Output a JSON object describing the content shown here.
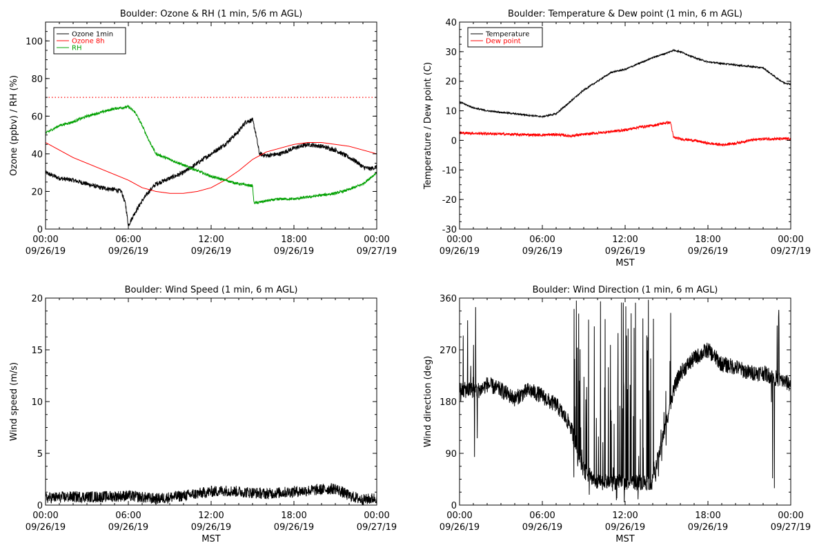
{
  "chart_data": [
    {
      "id": "ozone-rh",
      "type": "line",
      "title": "Boulder: Ozone & RH (1 min, 5/6 m AGL)",
      "ylabel": "Ozone (ppbv) / RH (%)",
      "xlabel": "",
      "ylim": [
        0,
        110
      ],
      "yticks": [
        0,
        20,
        40,
        60,
        80,
        100
      ],
      "xticks": [
        {
          "h": 0,
          "time": "00:00",
          "date": "09/26/19"
        },
        {
          "h": 6,
          "time": "06:00",
          "date": "09/26/19"
        },
        {
          "h": 12,
          "time": "12:00",
          "date": "09/26/19"
        },
        {
          "h": 18,
          "time": "18:00",
          "date": "09/26/19"
        },
        {
          "h": 24,
          "time": "00:00",
          "date": "09/27/19"
        }
      ],
      "legend": "top-left",
      "reference_line": {
        "y": 70,
        "color": "#ff0000",
        "style": "dotted"
      },
      "series": [
        {
          "name": "Ozone 1min",
          "color": "#000000",
          "noise": 1.2,
          "x": [
            0,
            1,
            2,
            3,
            4,
            5,
            5.5,
            5.8,
            6,
            6.5,
            7,
            7.5,
            8,
            9,
            10,
            11,
            12,
            13,
            14,
            14.5,
            15,
            15.2,
            15.5,
            16,
            17,
            18,
            19,
            20,
            21,
            22,
            22.5,
            23,
            23.5,
            24
          ],
          "y": [
            30,
            27,
            26,
            24,
            22,
            21,
            20,
            13,
            2,
            9,
            15,
            20,
            24,
            27,
            30,
            35,
            40,
            45,
            52,
            57,
            58,
            52,
            40,
            39,
            40,
            43,
            45,
            44,
            42,
            38,
            36,
            33,
            32,
            33
          ]
        },
        {
          "name": "Ozone 8h",
          "color": "#ff0000",
          "noise": 0,
          "x": [
            0,
            1,
            2,
            3,
            4,
            5,
            6,
            7,
            8,
            9,
            10,
            11,
            12,
            13,
            14,
            15,
            16,
            17,
            18,
            19,
            20,
            21,
            22,
            23,
            24
          ],
          "y": [
            46,
            42,
            38,
            35,
            32,
            29,
            26,
            22,
            20,
            19,
            19,
            20,
            22,
            26,
            31,
            37,
            41,
            43,
            45,
            46,
            46,
            45,
            44,
            42,
            40
          ]
        },
        {
          "name": "RH",
          "color": "#00a000",
          "noise": 0.7,
          "x": [
            0,
            1,
            2,
            3,
            4,
            5,
            6,
            6.5,
            7,
            7.5,
            8,
            9,
            10,
            11,
            12,
            12.5,
            13,
            14,
            15,
            15.1,
            15.3,
            16,
            17,
            18,
            19,
            20,
            21,
            22,
            23,
            24
          ],
          "y": [
            51,
            55,
            57,
            60,
            62,
            64,
            65,
            62,
            55,
            47,
            40,
            37,
            34,
            31,
            28,
            27,
            26,
            24,
            23,
            14,
            14,
            15,
            16,
            16,
            17,
            18,
            19,
            21,
            24,
            30
          ]
        }
      ]
    },
    {
      "id": "temp-dew",
      "type": "line",
      "title": "Boulder: Temperature & Dew point (1 min, 6 m AGL)",
      "ylabel": "Temperature / Dew point (C)",
      "xlabel": "MST",
      "ylim": [
        -30,
        40
      ],
      "yticks": [
        -30,
        -20,
        -10,
        0,
        10,
        20,
        30,
        40
      ],
      "xticks": [
        {
          "h": 0,
          "time": "00:00",
          "date": "09/26/19"
        },
        {
          "h": 6,
          "time": "06:00",
          "date": "09/26/19"
        },
        {
          "h": 12,
          "time": "12:00",
          "date": "09/26/19"
        },
        {
          "h": 18,
          "time": "18:00",
          "date": "09/26/19"
        },
        {
          "h": 24,
          "time": "00:00",
          "date": "09/27/19"
        }
      ],
      "legend": "top-left",
      "series": [
        {
          "name": "Temperature",
          "color": "#000000",
          "noise": 0.25,
          "x": [
            0,
            1,
            2,
            3,
            4,
            5,
            6,
            7,
            8,
            9,
            10,
            11,
            12,
            13,
            14,
            15,
            15.5,
            16,
            17,
            18,
            19,
            20,
            21,
            22,
            23,
            23.5,
            24
          ],
          "y": [
            13,
            11,
            10,
            9.5,
            9,
            8.5,
            8,
            9,
            13,
            17,
            20,
            23,
            24,
            26,
            28,
            29.5,
            30.5,
            30,
            28,
            26.5,
            26,
            25.5,
            25,
            24.5,
            21,
            19.5,
            19
          ]
        },
        {
          "name": "Dew point",
          "color": "#ff0000",
          "noise": 0.45,
          "x": [
            0,
            2,
            4,
            6,
            7,
            8,
            10,
            12,
            13,
            14,
            15,
            15.3,
            15.5,
            16,
            17,
            18,
            19,
            20,
            21,
            22,
            23,
            24
          ],
          "y": [
            2.5,
            2.3,
            2,
            1.8,
            2,
            1.5,
            2.5,
            3.5,
            4.5,
            5,
            6,
            6,
            1,
            0.5,
            0,
            -1,
            -1.5,
            -1,
            0,
            0.5,
            0.5,
            0.5
          ]
        }
      ]
    },
    {
      "id": "wind-speed",
      "type": "line",
      "title": "Boulder: Wind Speed (1 min, 6 m AGL)",
      "ylabel": "Wind speed (m/s)",
      "xlabel": "MST",
      "ylim": [
        0,
        20
      ],
      "yticks": [
        0,
        5,
        10,
        15,
        20
      ],
      "xticks": [
        {
          "h": 0,
          "time": "00:00",
          "date": "09/26/19"
        },
        {
          "h": 6,
          "time": "06:00",
          "date": "09/26/19"
        },
        {
          "h": 12,
          "time": "12:00",
          "date": "09/26/19"
        },
        {
          "h": 18,
          "time": "18:00",
          "date": "09/26/19"
        },
        {
          "h": 24,
          "time": "00:00",
          "date": "09/27/19"
        }
      ],
      "series": [
        {
          "color": "#000000",
          "noise": 0.55,
          "clampMin": 0,
          "x": [
            0,
            2,
            4,
            6,
            8,
            10,
            12,
            13,
            14,
            16,
            18,
            20,
            21,
            22,
            23,
            24
          ],
          "y": [
            0.7,
            0.8,
            0.8,
            0.9,
            0.6,
            0.9,
            1.3,
            1.4,
            1.3,
            1.1,
            1.3,
            1.5,
            1.6,
            0.9,
            0.5,
            0.7
          ]
        }
      ]
    },
    {
      "id": "wind-dir",
      "type": "line",
      "title": "Boulder: Wind Direction (1 min, 6 m AGL)",
      "ylabel": "Wind direction (deg)",
      "xlabel": "MST",
      "ylim": [
        0,
        360
      ],
      "yticks": [
        0,
        90,
        180,
        270,
        360
      ],
      "xticks": [
        {
          "h": 0,
          "time": "00:00",
          "date": "09/26/19"
        },
        {
          "h": 6,
          "time": "06:00",
          "date": "09/26/19"
        },
        {
          "h": 12,
          "time": "12:00",
          "date": "09/26/19"
        },
        {
          "h": 18,
          "time": "18:00",
          "date": "09/26/19"
        },
        {
          "h": 24,
          "time": "00:00",
          "date": "09/27/19"
        }
      ],
      "series": [
        {
          "color": "#000000",
          "noise": 14,
          "wrap": 360,
          "chaotic": [
            [
              0,
              1.4
            ],
            [
              8.2,
              15.5
            ],
            [
              22.6,
              23.2
            ]
          ],
          "x": [
            0,
            1.5,
            2,
            3,
            4,
            5,
            6,
            6.5,
            7,
            8,
            9,
            10,
            12,
            14,
            15.5,
            16,
            17,
            18,
            19,
            20,
            21,
            22,
            23,
            24
          ],
          "y": [
            200,
            200,
            210,
            200,
            185,
            200,
            190,
            180,
            175,
            140,
            60,
            40,
            40,
            40,
            200,
            230,
            255,
            270,
            245,
            240,
            230,
            230,
            220,
            210
          ]
        }
      ]
    }
  ]
}
